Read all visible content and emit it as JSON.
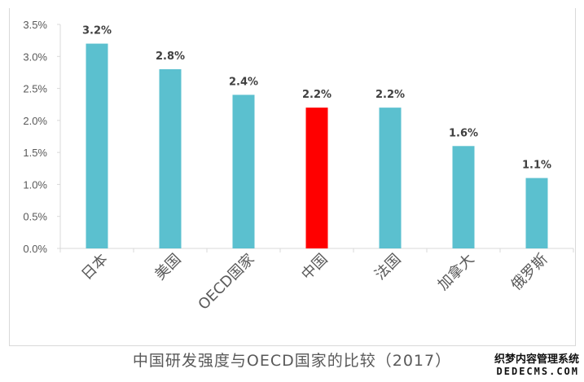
{
  "chart_data": {
    "type": "bar",
    "title": "中国研发强度与OECD国家的比较（2017）",
    "categories": [
      "日本",
      "美国",
      "OECD国家",
      "中国",
      "法国",
      "加拿大",
      "俄罗斯"
    ],
    "values": [
      3.2,
      2.8,
      2.4,
      2.2,
      2.2,
      1.6,
      1.1
    ],
    "data_labels": [
      "3.2%",
      "2.8%",
      "2.4%",
      "2.2%",
      "2.2%",
      "1.6%",
      "1.1%"
    ],
    "ylim": [
      0,
      3.5
    ],
    "yticks": [
      "0.0%",
      "0.5%",
      "1.0%",
      "1.5%",
      "2.0%",
      "2.5%",
      "3.0%",
      "3.5%"
    ],
    "grid": false,
    "colors": {
      "default": "#5bc0cf",
      "highlight": "#ff0000"
    },
    "highlight_category": "中国"
  },
  "watermark": {
    "line1": "织梦内容管理系统",
    "line2": "DEDECMS.COM"
  }
}
